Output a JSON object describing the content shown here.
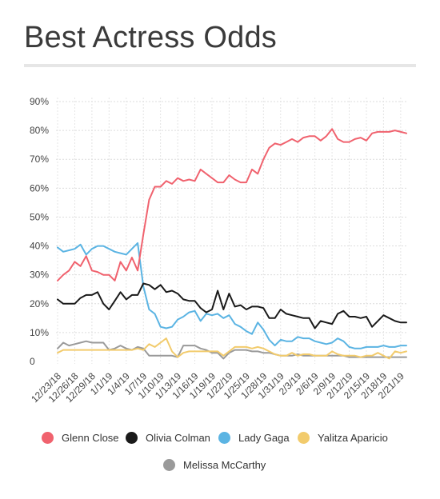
{
  "chart_data": {
    "type": "line",
    "title": "Best Actress Odds",
    "xlabel": "",
    "ylabel": "",
    "ylim": [
      0,
      90
    ],
    "yticks": [
      {
        "value": 0,
        "label": "0"
      },
      {
        "value": 10,
        "label": "10%"
      },
      {
        "value": 20,
        "label": "20%"
      },
      {
        "value": 30,
        "label": "30%"
      },
      {
        "value": 40,
        "label": "40%"
      },
      {
        "value": 50,
        "label": "50%"
      },
      {
        "value": 60,
        "label": "60%"
      },
      {
        "value": 70,
        "label": "70%"
      },
      {
        "value": 80,
        "label": "80%"
      },
      {
        "value": 90,
        "label": "90%"
      }
    ],
    "x": [
      "12/23/18",
      "12/24/18",
      "12/25/18",
      "12/26/18",
      "12/27/18",
      "12/28/18",
      "12/29/18",
      "12/30/18",
      "12/31/18",
      "1/1/19",
      "1/2/19",
      "1/3/19",
      "1/4/19",
      "1/5/19",
      "1/6/19",
      "1/7/19",
      "1/8/19",
      "1/9/19",
      "1/10/19",
      "1/11/19",
      "1/12/19",
      "1/13/19",
      "1/14/19",
      "1/15/19",
      "1/16/19",
      "1/17/19",
      "1/18/19",
      "1/19/19",
      "1/20/19",
      "1/21/19",
      "1/22/19",
      "1/23/19",
      "1/24/19",
      "1/25/19",
      "1/26/19",
      "1/27/19",
      "1/28/19",
      "1/29/19",
      "1/30/19",
      "1/31/19",
      "2/1/19",
      "2/2/19",
      "2/3/19",
      "2/4/19",
      "2/5/19",
      "2/6/19",
      "2/7/19",
      "2/8/19",
      "2/9/19",
      "2/10/19",
      "2/11/19",
      "2/12/19",
      "2/13/19",
      "2/14/19",
      "2/15/19",
      "2/16/19",
      "2/17/19",
      "2/18/19",
      "2/19/19",
      "2/20/19",
      "2/21/19",
      "2/22/19"
    ],
    "xtick_labels": [
      "12/23/18",
      "12/26/18",
      "12/29/18",
      "1/1/19",
      "1/4/19",
      "1/7/19",
      "1/10/19",
      "1/13/19",
      "1/16/19",
      "1/19/19",
      "1/22/19",
      "1/25/19",
      "1/28/19",
      "1/31/19",
      "2/3/19",
      "2/6/19",
      "2/9/19",
      "2/12/19",
      "2/15/19",
      "2/18/19",
      "2/21/19"
    ],
    "series": [
      {
        "name": "Glenn Close",
        "color": "#f0626e",
        "values": [
          28,
          30,
          31.5,
          34.5,
          33,
          36.5,
          31.5,
          31,
          30,
          30,
          28,
          34.5,
          31.5,
          36,
          31.5,
          44,
          56,
          60.5,
          60.5,
          62.5,
          61.5,
          63.5,
          62.5,
          63,
          62.5,
          66.5,
          65,
          63.5,
          62,
          62,
          64.5,
          63,
          62,
          62,
          66.5,
          65,
          70,
          74,
          75.5,
          75,
          76,
          77,
          76,
          77.5,
          78,
          78,
          76.5,
          78,
          80.5,
          77,
          76,
          76,
          77,
          77.5,
          76.5,
          79,
          79.5,
          79.5,
          79.5,
          80,
          79.5,
          79
        ]
      },
      {
        "name": "Olivia Colman",
        "color": "#1a1a1a",
        "values": [
          21.5,
          20,
          20,
          20,
          22,
          23,
          23,
          24,
          20,
          18,
          21,
          24,
          21.5,
          23,
          23,
          27,
          26.5,
          25,
          26.5,
          24,
          24.5,
          23.5,
          21.5,
          21,
          21,
          18.5,
          17,
          18,
          24.5,
          18,
          23.5,
          19,
          19.5,
          18,
          19,
          19,
          18.5,
          15,
          15,
          18,
          16.5,
          16,
          15.5,
          15,
          15,
          11.5,
          14,
          13.5,
          13,
          16.5,
          17.5,
          15.5,
          15.5,
          15,
          15.5,
          12,
          14,
          16,
          15,
          14,
          13.5,
          13.5
        ]
      },
      {
        "name": "Lady Gaga",
        "color": "#5bb4e3",
        "values": [
          39.5,
          38,
          38.5,
          39,
          40.5,
          37,
          39,
          40,
          40,
          39,
          38,
          37.5,
          37,
          39,
          41,
          26,
          18,
          16.5,
          12,
          11.5,
          12,
          14.5,
          15.5,
          17,
          17.5,
          14,
          16.5,
          16,
          16.5,
          15,
          16,
          13,
          12,
          10.5,
          9.5,
          13.5,
          11,
          7.5,
          5.5,
          7.5,
          7,
          7,
          8.5,
          8,
          8,
          7,
          6.5,
          6,
          6.5,
          8,
          7,
          5,
          4.5,
          4.5,
          5,
          5,
          5,
          5.5,
          5,
          5,
          5.5,
          5.5
        ]
      },
      {
        "name": "Yalitza Aparicio",
        "color": "#f2cb6c",
        "values": [
          3,
          4,
          4,
          4,
          4,
          4,
          4,
          4,
          4,
          4,
          4,
          4,
          4,
          4,
          4.5,
          4,
          6,
          5,
          6.5,
          8,
          3.5,
          1.5,
          3,
          3.5,
          3.5,
          3.5,
          3.5,
          3.5,
          3.5,
          2,
          3.5,
          5,
          5,
          5,
          4.5,
          5,
          4.5,
          3.5,
          2.5,
          2,
          2,
          3,
          2,
          2.5,
          2.5,
          2,
          2,
          2,
          3.5,
          2.5,
          2,
          2,
          2,
          1.5,
          2,
          2,
          3,
          2,
          1,
          3.5,
          3,
          3.5
        ]
      },
      {
        "name": "Melissa McCarthy",
        "color": "#9a9a9a",
        "values": [
          4.5,
          6.5,
          5.5,
          6,
          6.5,
          7,
          6.5,
          6.5,
          6.5,
          4,
          4.5,
          5.5,
          4.5,
          4,
          5,
          4.5,
          2,
          2,
          2,
          2,
          2,
          1.5,
          5.5,
          5.5,
          5.5,
          4.5,
          4,
          3,
          3,
          1,
          3,
          4,
          4,
          4,
          3.5,
          3.5,
          3,
          3,
          2.5,
          2,
          2,
          2,
          2.5,
          2,
          2,
          2,
          2,
          2,
          2,
          2,
          2,
          1.5,
          1.5,
          1.5,
          1.5,
          1.5,
          1.5,
          1.5,
          1.5,
          1.5,
          1.5,
          1.5
        ]
      }
    ],
    "legend_position": "bottom",
    "grid": true
  }
}
